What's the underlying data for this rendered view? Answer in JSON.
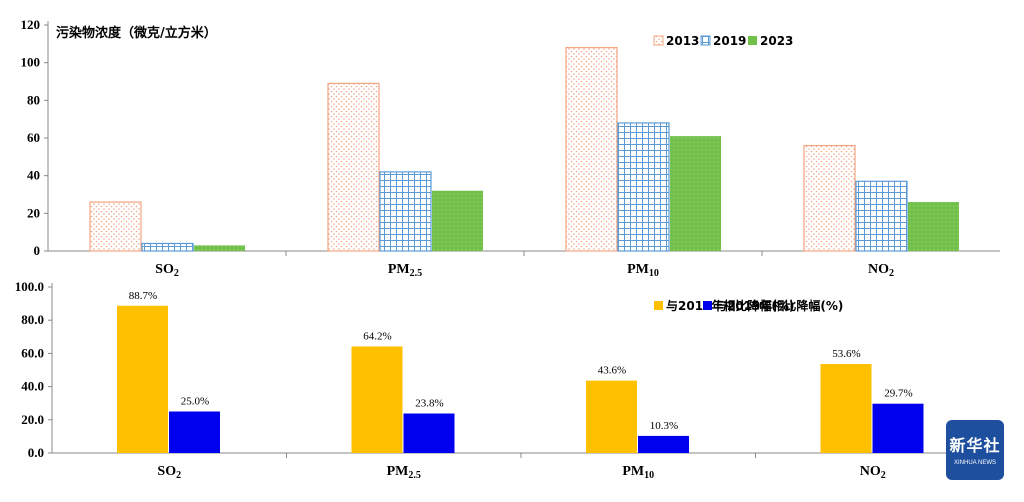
{
  "chart_data": [
    {
      "type": "bar",
      "title": "污染物浓度（微克/立方米）",
      "categories": [
        {
          "main": "SO",
          "sub": "2"
        },
        {
          "main": "PM",
          "sub": "2.5"
        },
        {
          "main": "PM",
          "sub": "10"
        },
        {
          "main": "NO",
          "sub": "2"
        }
      ],
      "series": [
        {
          "name": "2013",
          "values": [
            26,
            89,
            108,
            56
          ],
          "color": "#f4a582",
          "pattern": "dots"
        },
        {
          "name": "2019",
          "values": [
            4,
            42,
            68,
            37
          ],
          "color": "#5b9bd5",
          "pattern": "grid"
        },
        {
          "name": "2023",
          "values": [
            3,
            32,
            61,
            26
          ],
          "color": "#70c04a",
          "pattern": "solid"
        }
      ],
      "ylim": [
        0,
        120
      ],
      "yticks": [
        "0",
        "20",
        "40",
        "60",
        "80",
        "100",
        "120"
      ],
      "legend_position": "top-right",
      "grid": false
    },
    {
      "type": "bar",
      "title": "",
      "categories": [
        {
          "main": "SO",
          "sub": "2"
        },
        {
          "main": "PM",
          "sub": "2.5"
        },
        {
          "main": "PM",
          "sub": "10"
        },
        {
          "main": "NO",
          "sub": "2"
        }
      ],
      "series": [
        {
          "name": "与2013年相比降幅(%)",
          "values": [
            88.7,
            64.2,
            43.6,
            53.6
          ],
          "labels": [
            "88.7%",
            "64.2%",
            "43.6%",
            "53.6%"
          ],
          "color": "#ffc000"
        },
        {
          "name": "与2019年相比降幅(%)",
          "values": [
            25.0,
            23.8,
            10.3,
            29.7
          ],
          "labels": [
            "25.0%",
            "23.8%",
            "10.3%",
            "29.7%"
          ],
          "color": "#0000ee"
        }
      ],
      "ylim": [
        0,
        100
      ],
      "yticks": [
        "0.0",
        "20.0",
        "40.0",
        "60.0",
        "80.0",
        "100.0"
      ],
      "legend_position": "top-right",
      "grid": false
    }
  ],
  "logo": {
    "name": "新华社",
    "subtitle": "XINHUA NEWS"
  }
}
